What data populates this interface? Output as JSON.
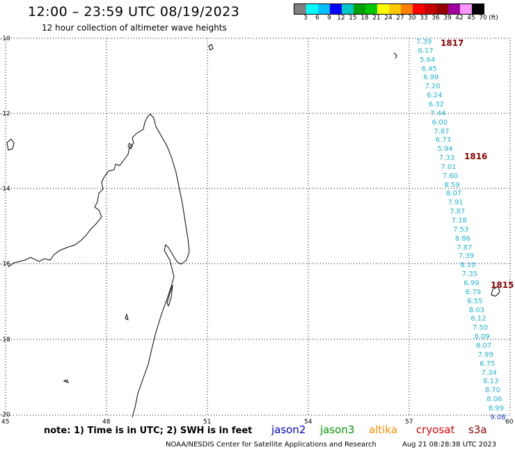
{
  "header": {
    "title": "12:00 – 23:59 UTC 08/19/2023",
    "subtitle": "12 hour collection of altimeter wave heights"
  },
  "legend": {
    "colors": [
      "#808080",
      "#00ffff",
      "#00bfff",
      "#0000ff",
      "#00c8c8",
      "#00a000",
      "#00c800",
      "#ffff00",
      "#ffc800",
      "#ff8000",
      "#ff0000",
      "#c80000",
      "#960000",
      "#a000a0",
      "#ff96ff",
      "#000000"
    ],
    "labels": [
      "3",
      "6",
      "9",
      "12",
      "15",
      "18",
      "21",
      "24",
      "27",
      "30",
      "33",
      "36",
      "39",
      "42",
      "45",
      "70",
      "(ft)"
    ]
  },
  "axes": {
    "lat_labels": [
      "-10",
      "-12",
      "-14",
      "-16",
      "-18",
      "-20"
    ],
    "lon_labels": [
      "45",
      "48",
      "51",
      "54",
      "57",
      "60"
    ]
  },
  "wave_heights": [
    "7.39",
    "6.17",
    "5.64",
    "6.45",
    "6.99",
    "7.20",
    "6.24",
    "6.32",
    "7.44",
    "6.00",
    "7.87",
    "6.73",
    "5.94",
    "7.33",
    "7.01",
    "7.60",
    "8.59",
    "8.07",
    "7.91",
    "7.87",
    "7.18",
    "7.53",
    "8.86",
    "7.87",
    "7.39",
    "8.10",
    "7.35",
    "6.99",
    "6.79",
    "6.55",
    "8.03",
    "8.12",
    "7.50",
    "8.09",
    "8.07",
    "7.99",
    "6.75",
    "7.34",
    "8.13",
    "8.70",
    "8.06",
    "8.99",
    "9.08"
  ],
  "passes": [
    "1817",
    "1816",
    "1815"
  ],
  "footer": {
    "note": "note: 1) Time is in UTC; 2) SWH is in feet",
    "credit": "NOAA/NESDIS Center for Satellite Applications and Research",
    "generated": "Aug 21 08:28:38 UTC 2023",
    "satellites": [
      {
        "name": "jason2",
        "color": "#0000c8"
      },
      {
        "name": "jason3",
        "color": "#009600"
      },
      {
        "name": "altika",
        "color": "#ff8c00"
      },
      {
        "name": "cryosat",
        "color": "#e00000"
      },
      {
        "name": "s3a",
        "color": "#8b0000"
      }
    ]
  }
}
